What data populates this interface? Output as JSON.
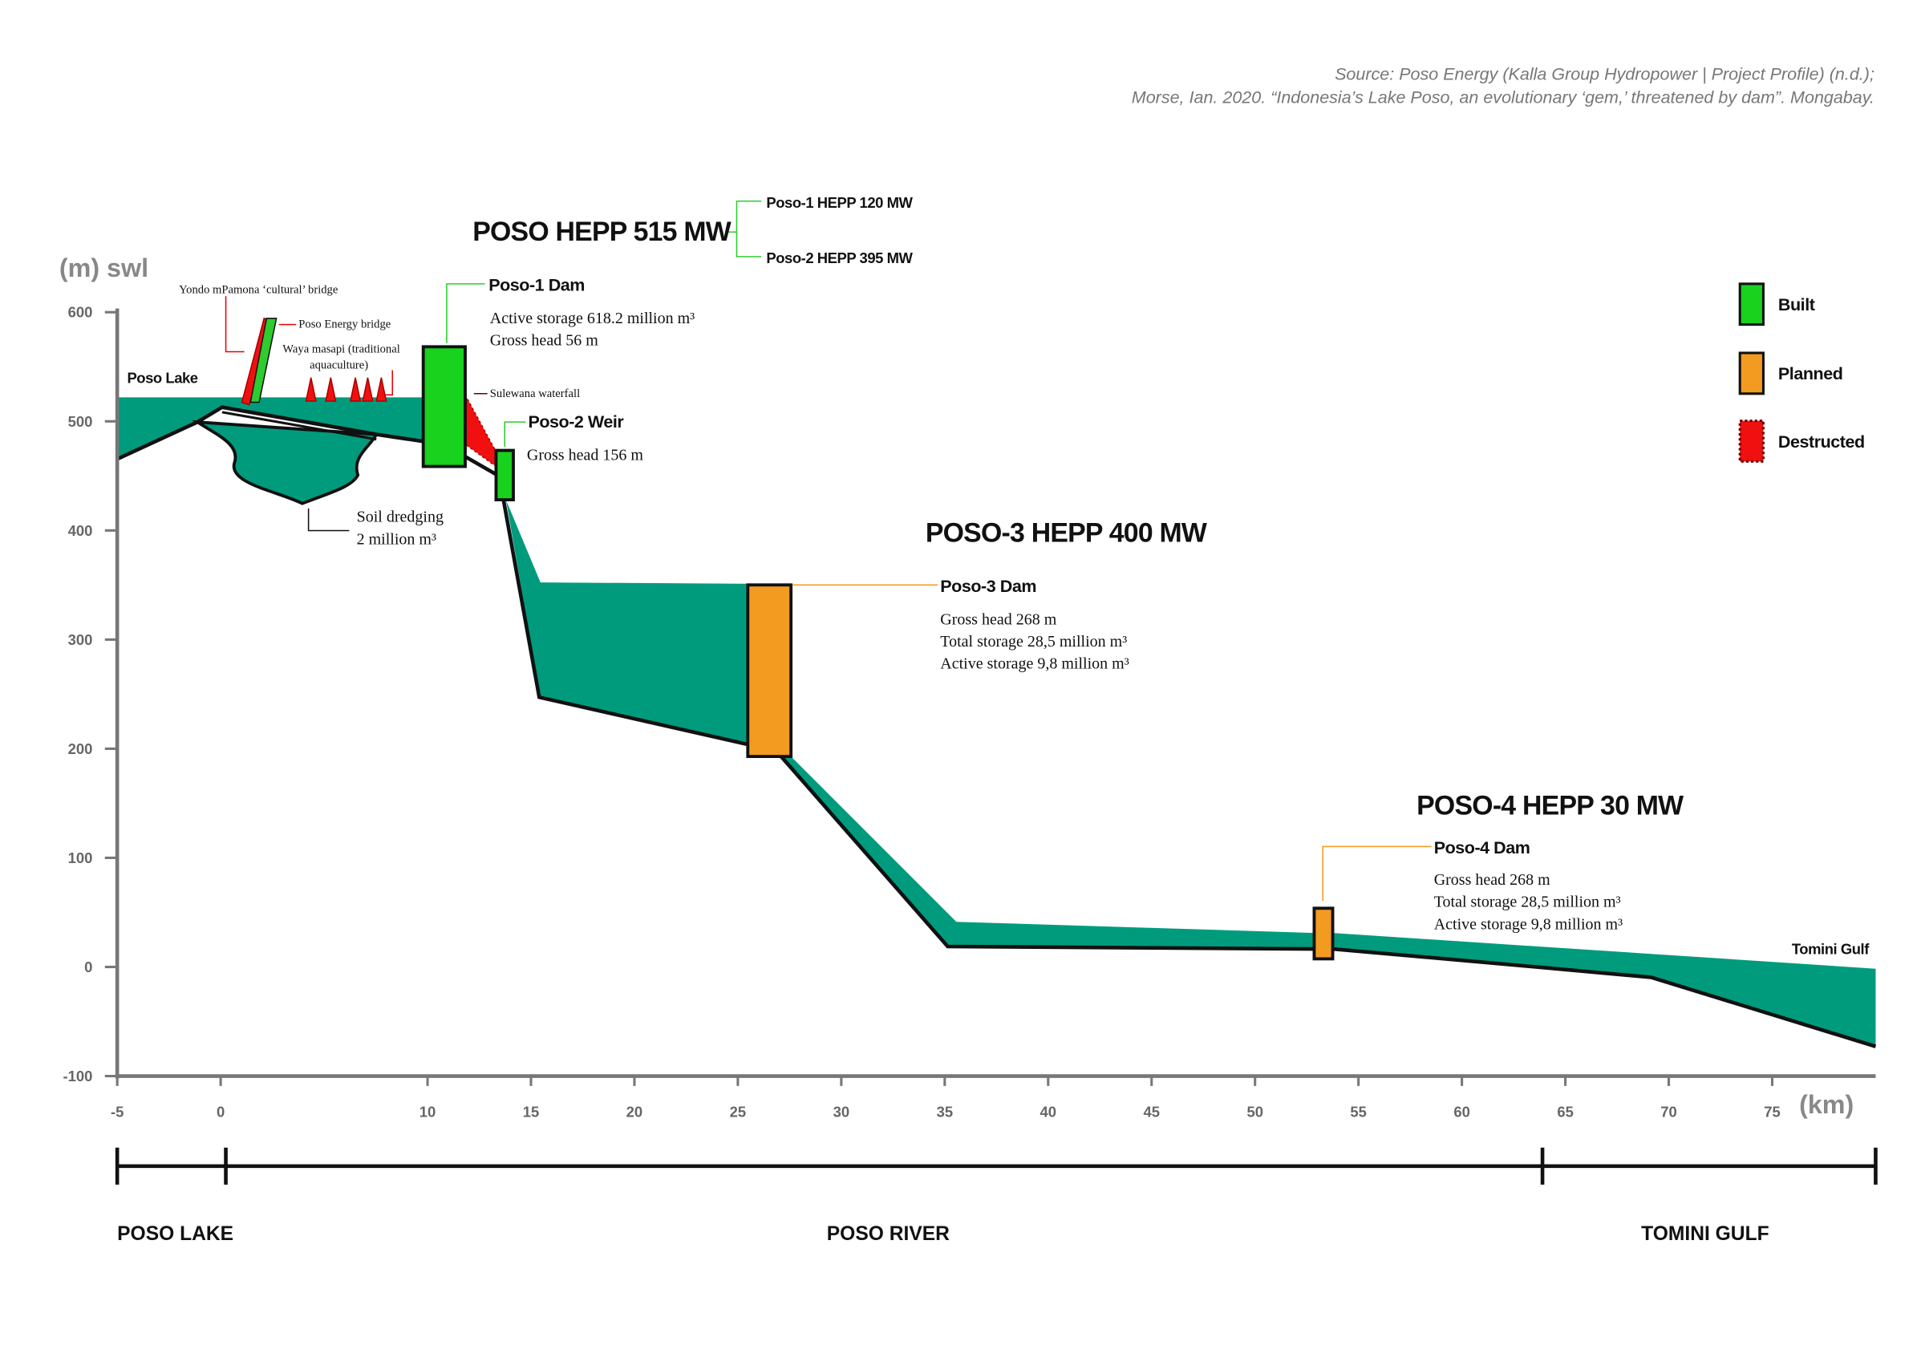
{
  "header": {
    "source": [
      "Source: Poso Energy (Kalla Group Hydropower | Project Profile) (n.d.);",
      "Morse, Ian. 2020. “Indonesia’s Lake Poso, an evolutionary ‘gem,’ threatened by dam”. Mongabay."
    ]
  },
  "axes": {
    "y_label": "(m) swl",
    "x_label": "(km)",
    "xlim": [
      -5,
      80
    ],
    "ylim": [
      -100,
      600
    ],
    "xticks": [
      -5,
      0,
      10,
      15,
      20,
      25,
      30,
      35,
      40,
      45,
      50,
      55,
      60,
      65,
      70,
      75
    ],
    "yticks": [
      -100,
      0,
      100,
      200,
      300,
      400,
      500,
      600
    ]
  },
  "plants": [
    {
      "title": "POSO HEPP 515 MW",
      "units": [
        "Poso-1 HEPP 120 MW",
        "Poso-2 HEPP 395 MW"
      ]
    },
    {
      "title": "POSO-3 HEPP 400 MW"
    },
    {
      "title": "POSO-4 HEPP 30 MW"
    }
  ],
  "structures": [
    {
      "name": "Poso-1 Dam",
      "details": [
        "Active storage 618.2 million m³",
        "Gross head 56 m"
      ]
    },
    {
      "name": "Poso-2 Weir",
      "details": [
        "Gross head 156 m"
      ]
    },
    {
      "name": "Poso-3 Dam",
      "details": [
        "Gross head 268 m",
        "Total storage 28,5 million m³",
        "Active storage 9,8 million m³"
      ]
    },
    {
      "name": "Poso-4 Dam",
      "details": [
        "Gross head 268 m",
        "Total storage 28,5 million m³",
        "Active storage 9,8 million m³"
      ]
    }
  ],
  "features": [
    {
      "lines": [
        "Yondo mPamona ‘cultural’ bridge"
      ]
    },
    {
      "lines": [
        "Poso Energy bridge"
      ]
    },
    {
      "lines": [
        "Waya masapi (traditional",
        "aquaculture)"
      ]
    },
    {
      "lines": [
        "Sulewana waterfall"
      ]
    },
    {
      "lines": [
        "Soil dredging",
        "2 million m³"
      ]
    }
  ],
  "places": [
    "Poso Lake",
    "Tomini Gulf"
  ],
  "legend": [
    "Built",
    "Planned",
    "Destructed"
  ],
  "sections": [
    "POSO LAKE",
    "POSO RIVER",
    "TOMINI GULF"
  ]
}
